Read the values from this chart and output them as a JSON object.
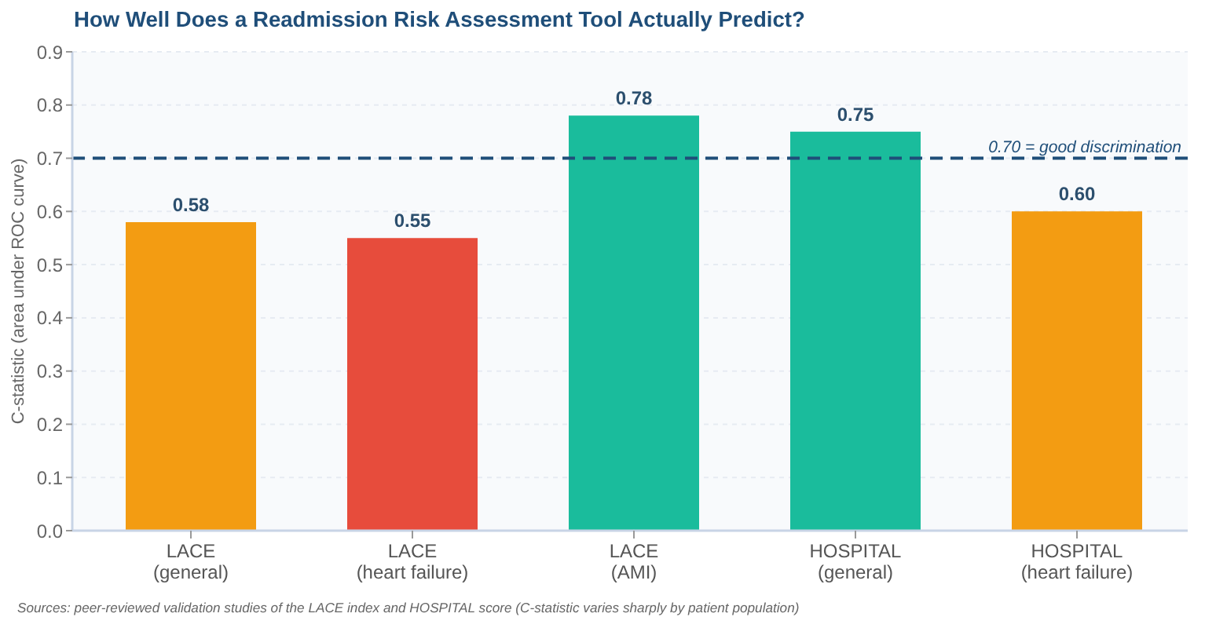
{
  "chart_data": {
    "type": "bar",
    "title": "How Well Does a Readmission Risk Assessment Tool Actually Predict?",
    "ylabel": "C-statistic (area under ROC curve)",
    "categories": [
      "LACE\n(general)",
      "LACE\n(heart failure)",
      "LACE\n(AMI)",
      "HOSPITAL\n(general)",
      "HOSPITAL\n(heart failure)"
    ],
    "values": [
      0.58,
      0.55,
      0.78,
      0.75,
      0.6
    ],
    "value_labels": [
      "0.58",
      "0.55",
      "0.78",
      "0.75",
      "0.60"
    ],
    "colors": [
      "#f39c12",
      "#e74c3c",
      "#1abc9c",
      "#1abc9c",
      "#f39c12"
    ],
    "ylim": [
      0,
      0.9
    ],
    "yticks": [
      {
        "value": 0,
        "label": "0.0"
      },
      0.1,
      0.2,
      0.3,
      0.4,
      0.5,
      0.6,
      0.7,
      0.8,
      0.9
    ],
    "grid": "y",
    "ref_lines": [
      {
        "axis": "y",
        "value": 0.7,
        "label": "0.70 = good discrimination",
        "color": "#1f4e79",
        "line_style": "dashed"
      }
    ],
    "annotations": [
      "Sources: peer-reviewed validation studies of the LACE index and HOSPITAL score (C-statistic varies sharply by patient population)"
    ]
  }
}
